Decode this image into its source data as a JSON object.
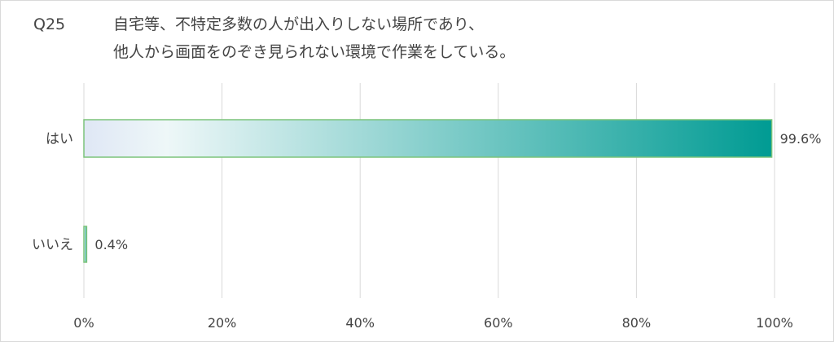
{
  "question": {
    "number": "Q25",
    "line1": "自宅等、不特定多数の人が出入りしない場所であり、",
    "line2": "他人から画面をのぞき見られない環境で作業をしている。"
  },
  "chart_data": {
    "type": "bar",
    "orientation": "horizontal",
    "title": "",
    "categories": [
      "はい",
      "いいえ"
    ],
    "values": [
      99.6,
      0.4
    ],
    "value_labels": [
      "99.6%",
      "0.4%"
    ],
    "xlim": [
      0,
      100
    ],
    "ticks": [
      0,
      20,
      40,
      60,
      80,
      100
    ],
    "tick_labels": [
      "0%",
      "20%",
      "40%",
      "60%",
      "80%",
      "100%"
    ],
    "grid": true,
    "colors": {
      "gradient_start": "#dfe7f5",
      "gradient_light": "#eef7f8",
      "gradient_end": "#009b93",
      "bar_border": "#7cc47a",
      "grid": "#d9d9d9",
      "text": "#444444"
    }
  }
}
